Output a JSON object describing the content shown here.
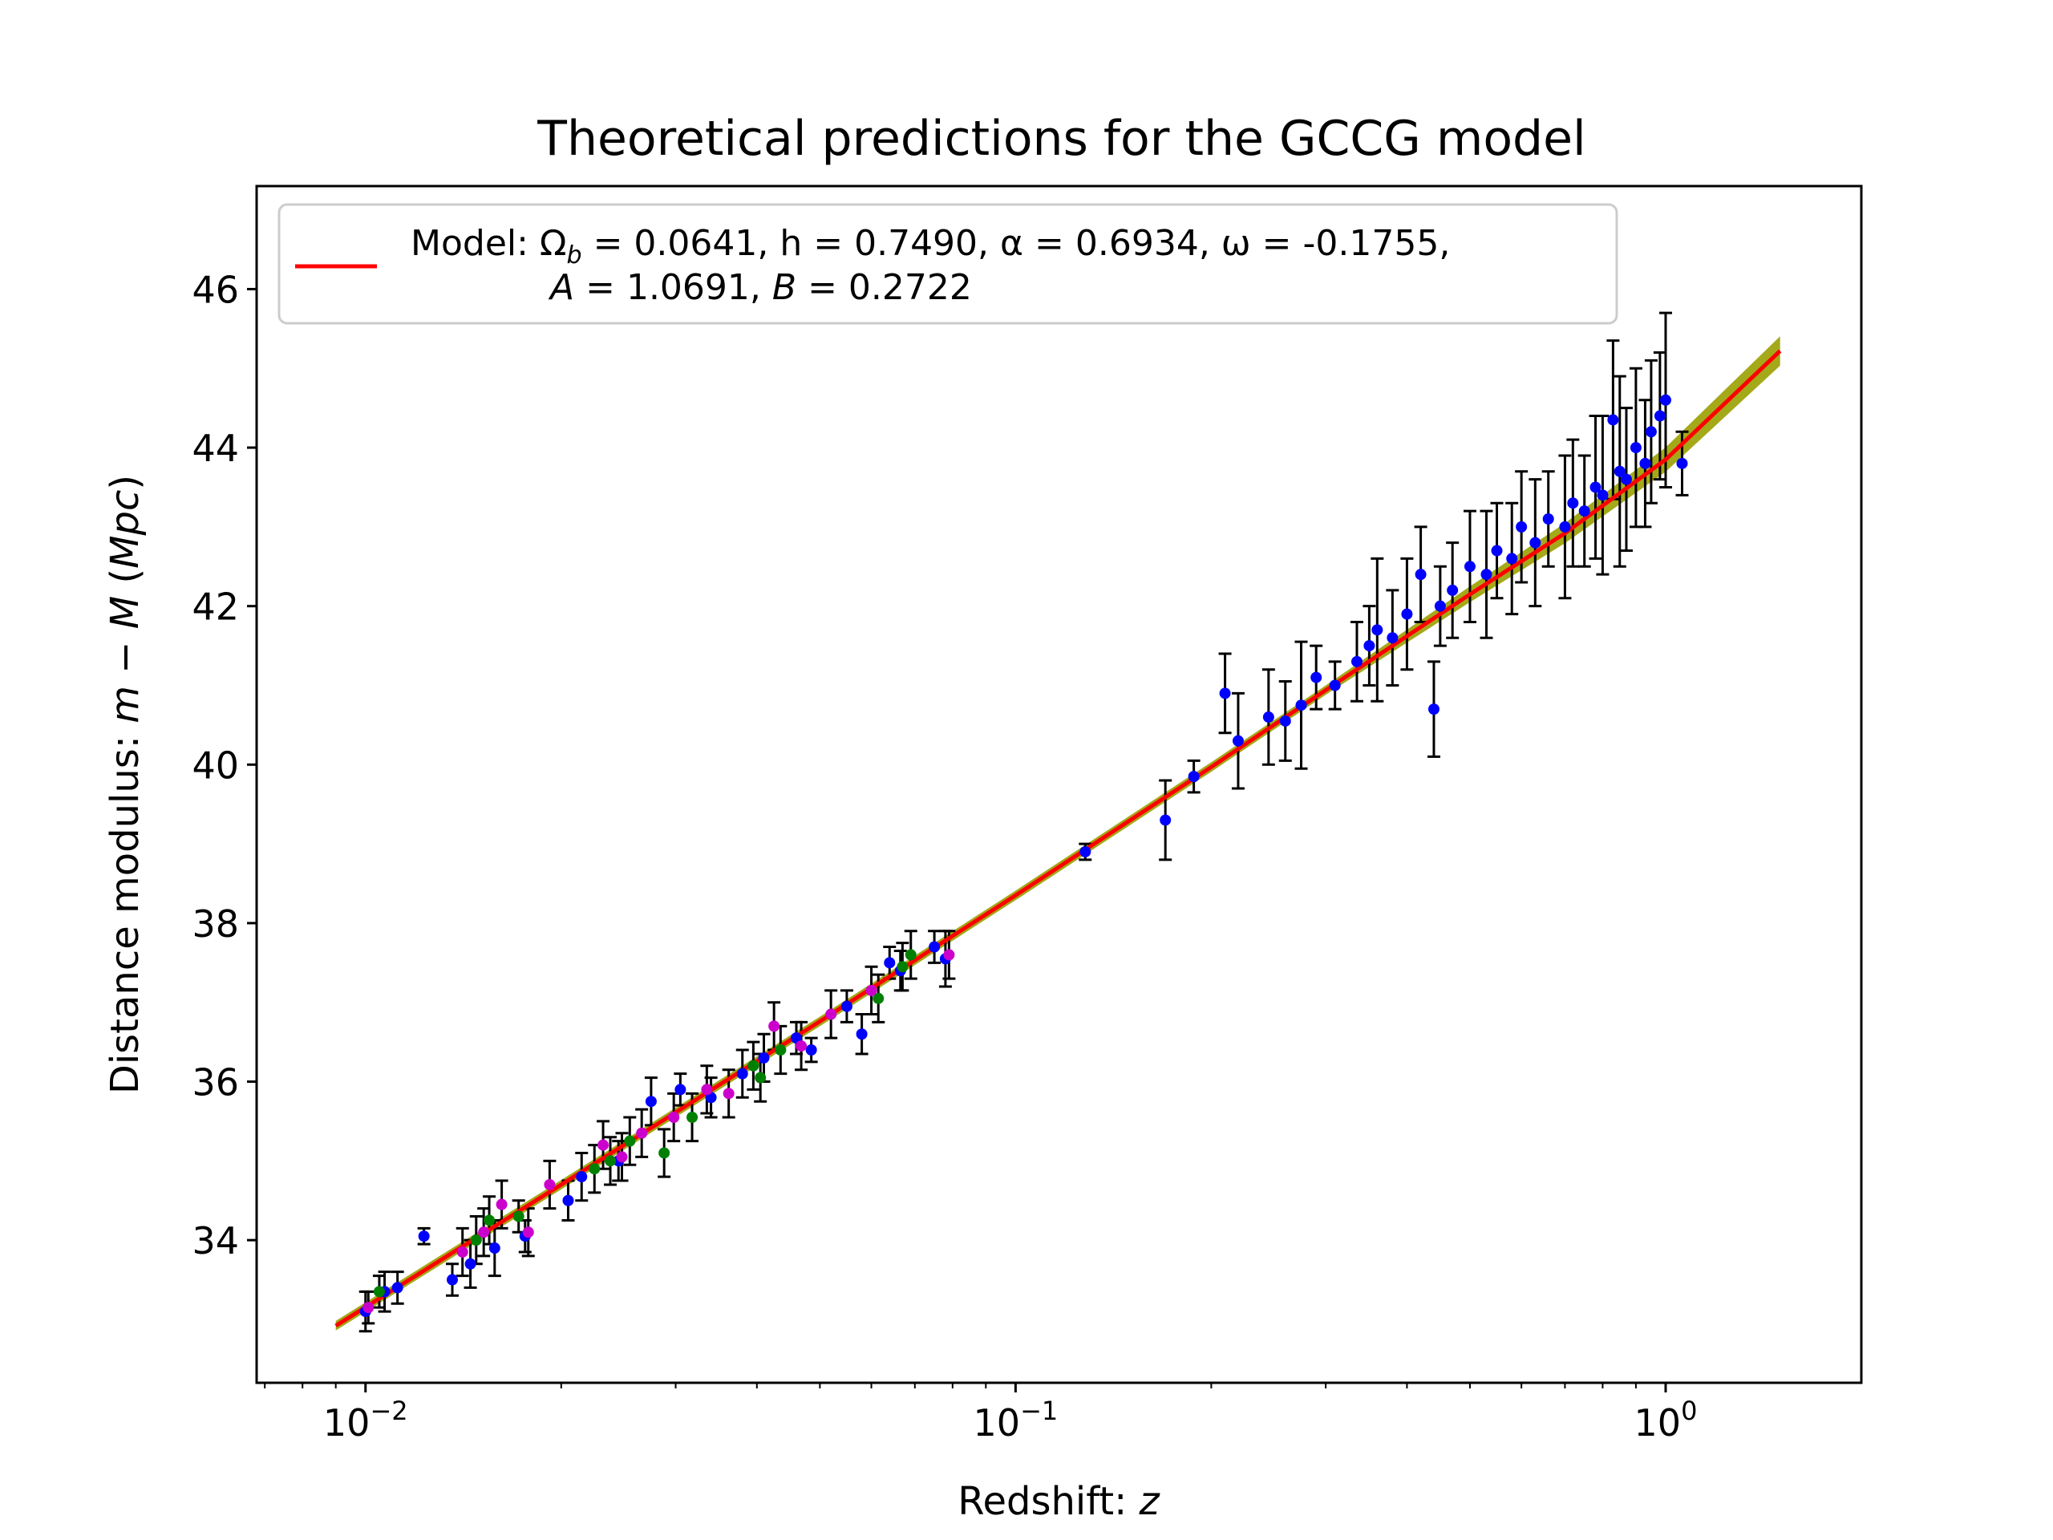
{
  "chart_data": {
    "type": "scatter",
    "title": "Theoretical predictions for the GCCG model",
    "xlabel": "Redshift: z",
    "ylabel": "Distance modulus: m − M (Mpc)",
    "x_scale": "log",
    "xlim": [
      0.0068,
      2.0
    ],
    "ylim": [
      32.2,
      47.3
    ],
    "x_ticks": [
      {
        "value": 0.01,
        "label": "10−2",
        "base": "10",
        "exp": "−2"
      },
      {
        "value": 0.1,
        "label": "10−1",
        "base": "10",
        "exp": "−1"
      },
      {
        "value": 1.0,
        "label": "10⁰",
        "base": "10",
        "exp": "0"
      }
    ],
    "y_ticks": [
      34,
      36,
      38,
      40,
      42,
      44,
      46
    ],
    "grid": false,
    "legend": {
      "placement": "top-left",
      "line1": "Model: Ωb = 0.0641, h = 0.7490, α = 0.6934, ω = -0.1755,",
      "line2": "A = 1.0691, B = 0.2722",
      "line1_parts": {
        "pre": "Model: Ω",
        "sub": "b",
        "post": " = 0.0641, h = 0.7490, α = 0.6934, ω = -0.1755,"
      },
      "color": "#ff0000"
    },
    "model_curve": {
      "color": "#ff0000",
      "band_color": "#9aa000",
      "x": [
        0.009,
        0.02,
        0.05,
        0.1,
        0.2,
        0.3,
        0.5,
        0.7,
        1.0,
        1.5
      ],
      "y": [
        32.92,
        34.7,
        36.76,
        38.35,
        39.97,
        40.94,
        42.15,
        42.92,
        43.85,
        45.22
      ]
    },
    "series": [
      {
        "color": "#0000ff",
        "points": [
          [
            0.01,
            33.1,
            0.25
          ],
          [
            0.0107,
            33.35,
            0.25
          ],
          [
            0.0112,
            33.4,
            0.2
          ],
          [
            0.0123,
            34.05,
            0.1
          ],
          [
            0.0136,
            33.5,
            0.2
          ],
          [
            0.0145,
            33.7,
            0.3
          ],
          [
            0.0158,
            33.9,
            0.35
          ],
          [
            0.0176,
            34.05,
            0.2
          ],
          [
            0.0205,
            34.5,
            0.25
          ],
          [
            0.0215,
            34.8,
            0.3
          ],
          [
            0.0245,
            35.0,
            0.25
          ],
          [
            0.0275,
            35.75,
            0.3
          ],
          [
            0.0305,
            35.9,
            0.2
          ],
          [
            0.034,
            35.8,
            0.25
          ],
          [
            0.038,
            36.1,
            0.3
          ],
          [
            0.041,
            36.3,
            0.3
          ],
          [
            0.046,
            36.55,
            0.2
          ],
          [
            0.0485,
            36.4,
            0.15
          ],
          [
            0.055,
            36.95,
            0.2
          ],
          [
            0.058,
            36.6,
            0.25
          ],
          [
            0.064,
            37.5,
            0.2
          ],
          [
            0.0665,
            37.4,
            0.25
          ],
          [
            0.075,
            37.7,
            0.2
          ],
          [
            0.078,
            37.55,
            0.35
          ],
          [
            0.128,
            38.9,
            0.1
          ],
          [
            0.17,
            39.3,
            0.5
          ],
          [
            0.188,
            39.85,
            0.2
          ],
          [
            0.21,
            40.9,
            0.5
          ],
          [
            0.22,
            40.3,
            0.6
          ],
          [
            0.245,
            40.6,
            0.6
          ],
          [
            0.26,
            40.55,
            0.5
          ],
          [
            0.275,
            40.75,
            0.8
          ],
          [
            0.29,
            41.1,
            0.4
          ],
          [
            0.31,
            41.0,
            0.3
          ],
          [
            0.335,
            41.3,
            0.5
          ],
          [
            0.35,
            41.5,
            0.5
          ],
          [
            0.36,
            41.7,
            0.9
          ],
          [
            0.38,
            41.6,
            0.6
          ],
          [
            0.4,
            41.9,
            0.7
          ],
          [
            0.42,
            42.4,
            0.6
          ],
          [
            0.44,
            40.7,
            0.6
          ],
          [
            0.45,
            42.0,
            0.5
          ],
          [
            0.47,
            42.2,
            0.6
          ],
          [
            0.5,
            42.5,
            0.7
          ],
          [
            0.53,
            42.4,
            0.8
          ],
          [
            0.55,
            42.7,
            0.6
          ],
          [
            0.58,
            42.6,
            0.7
          ],
          [
            0.6,
            43.0,
            0.7
          ],
          [
            0.63,
            42.8,
            0.8
          ],
          [
            0.66,
            43.1,
            0.6
          ],
          [
            0.7,
            43.0,
            0.9
          ],
          [
            0.72,
            43.3,
            0.8
          ],
          [
            0.75,
            43.2,
            0.7
          ],
          [
            0.78,
            43.5,
            0.9
          ],
          [
            0.8,
            43.4,
            1.0
          ],
          [
            0.83,
            44.35,
            1.0
          ],
          [
            0.85,
            43.7,
            1.2
          ],
          [
            0.87,
            43.6,
            0.9
          ],
          [
            0.9,
            44.0,
            1.0
          ],
          [
            0.93,
            43.8,
            0.8
          ],
          [
            0.95,
            44.2,
            0.9
          ],
          [
            0.98,
            44.4,
            0.8
          ],
          [
            1.0,
            44.6,
            1.1
          ],
          [
            1.06,
            43.8,
            0.4
          ]
        ]
      },
      {
        "color": "#008000",
        "points": [
          [
            0.0105,
            33.35,
            0.2
          ],
          [
            0.0148,
            34.0,
            0.3
          ],
          [
            0.0155,
            34.25,
            0.3
          ],
          [
            0.0172,
            34.3,
            0.2
          ],
          [
            0.0225,
            34.9,
            0.3
          ],
          [
            0.0238,
            35.0,
            0.3
          ],
          [
            0.0255,
            35.25,
            0.3
          ],
          [
            0.0288,
            35.1,
            0.3
          ],
          [
            0.0318,
            35.55,
            0.3
          ],
          [
            0.0395,
            36.2,
            0.3
          ],
          [
            0.0405,
            36.05,
            0.3
          ],
          [
            0.0435,
            36.4,
            0.3
          ],
          [
            0.0615,
            37.05,
            0.3
          ],
          [
            0.067,
            37.45,
            0.3
          ],
          [
            0.069,
            37.6,
            0.3
          ]
        ]
      },
      {
        "color": "#cc00cc",
        "points": [
          [
            0.0101,
            33.15,
            0.2
          ],
          [
            0.0141,
            33.85,
            0.3
          ],
          [
            0.0152,
            34.1,
            0.3
          ],
          [
            0.0162,
            34.45,
            0.3
          ],
          [
            0.0178,
            34.1,
            0.3
          ],
          [
            0.0192,
            34.7,
            0.3
          ],
          [
            0.0232,
            35.2,
            0.3
          ],
          [
            0.0248,
            35.05,
            0.3
          ],
          [
            0.0266,
            35.35,
            0.3
          ],
          [
            0.0298,
            35.55,
            0.3
          ],
          [
            0.0335,
            35.9,
            0.3
          ],
          [
            0.0362,
            35.85,
            0.3
          ],
          [
            0.0425,
            36.7,
            0.3
          ],
          [
            0.0468,
            36.45,
            0.3
          ],
          [
            0.052,
            36.85,
            0.3
          ],
          [
            0.06,
            37.15,
            0.3
          ],
          [
            0.079,
            37.6,
            0.3
          ]
        ]
      }
    ]
  }
}
